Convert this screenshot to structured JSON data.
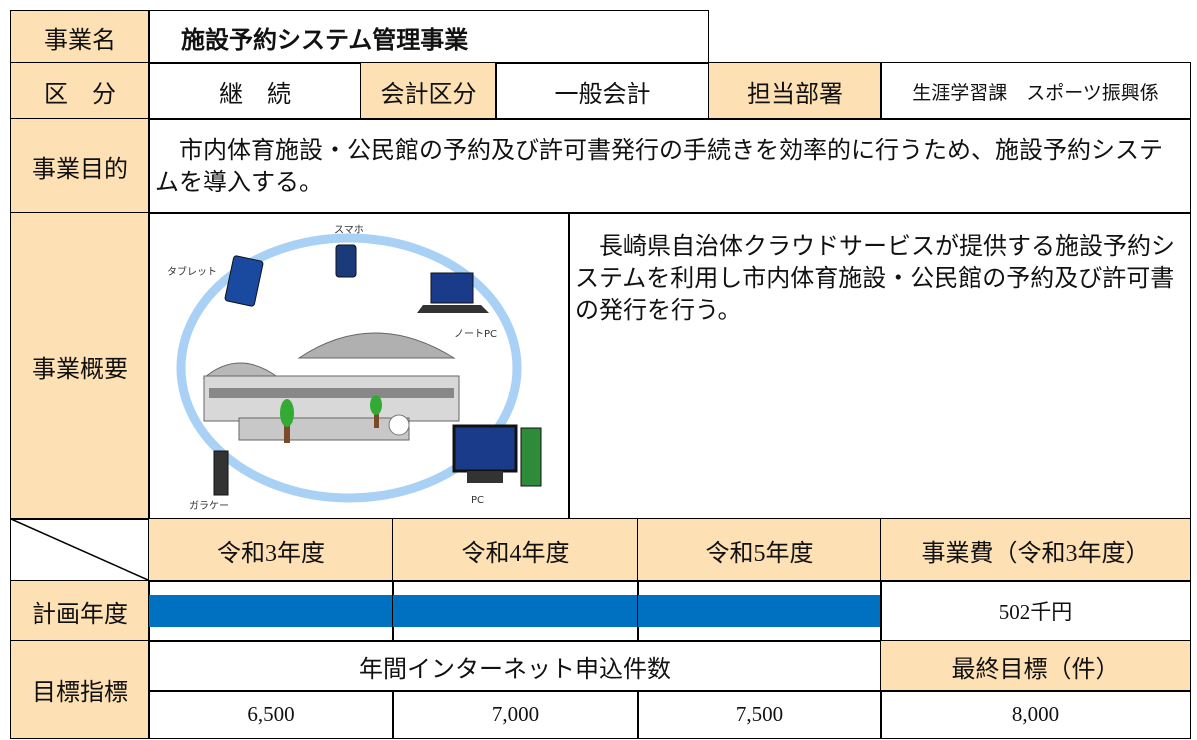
{
  "project_name": {
    "label": "事業名",
    "value": "施設予約システム管理事業"
  },
  "category": {
    "label": "区　分",
    "value": "継　続"
  },
  "accounting": {
    "label": "会計区分",
    "value": "一般会計"
  },
  "department": {
    "label": "担当部署",
    "value": "生涯学習課　スポーツ振興係"
  },
  "purpose": {
    "label": "事業目的",
    "text": "市内体育施設・公民館の予約及び許可書発行の手続きを効率的に行うため、施設予約システムを導入する。"
  },
  "overview": {
    "label": "事業概要",
    "text": "長崎県自治体クラウドサービスが提供する施設予約システムを利用し市内体育施設・公民館の予約及び許可書の発行を行う。",
    "diagram_labels": [
      "スマホ",
      "タブレット",
      "ノートPC",
      "PC",
      "ガラケー"
    ]
  },
  "schedule": {
    "headers": [
      "令和3年度",
      "令和4年度",
      "令和5年度",
      "事業費（令和3年度）"
    ],
    "plan_label": "計画年度",
    "cost": "502千円"
  },
  "targets": {
    "label": "目標指標",
    "indicator": "年間インターネット申込件数",
    "final_label": "最終目標（件）",
    "values": [
      "6,500",
      "7,000",
      "7,500",
      "8,000"
    ]
  }
}
